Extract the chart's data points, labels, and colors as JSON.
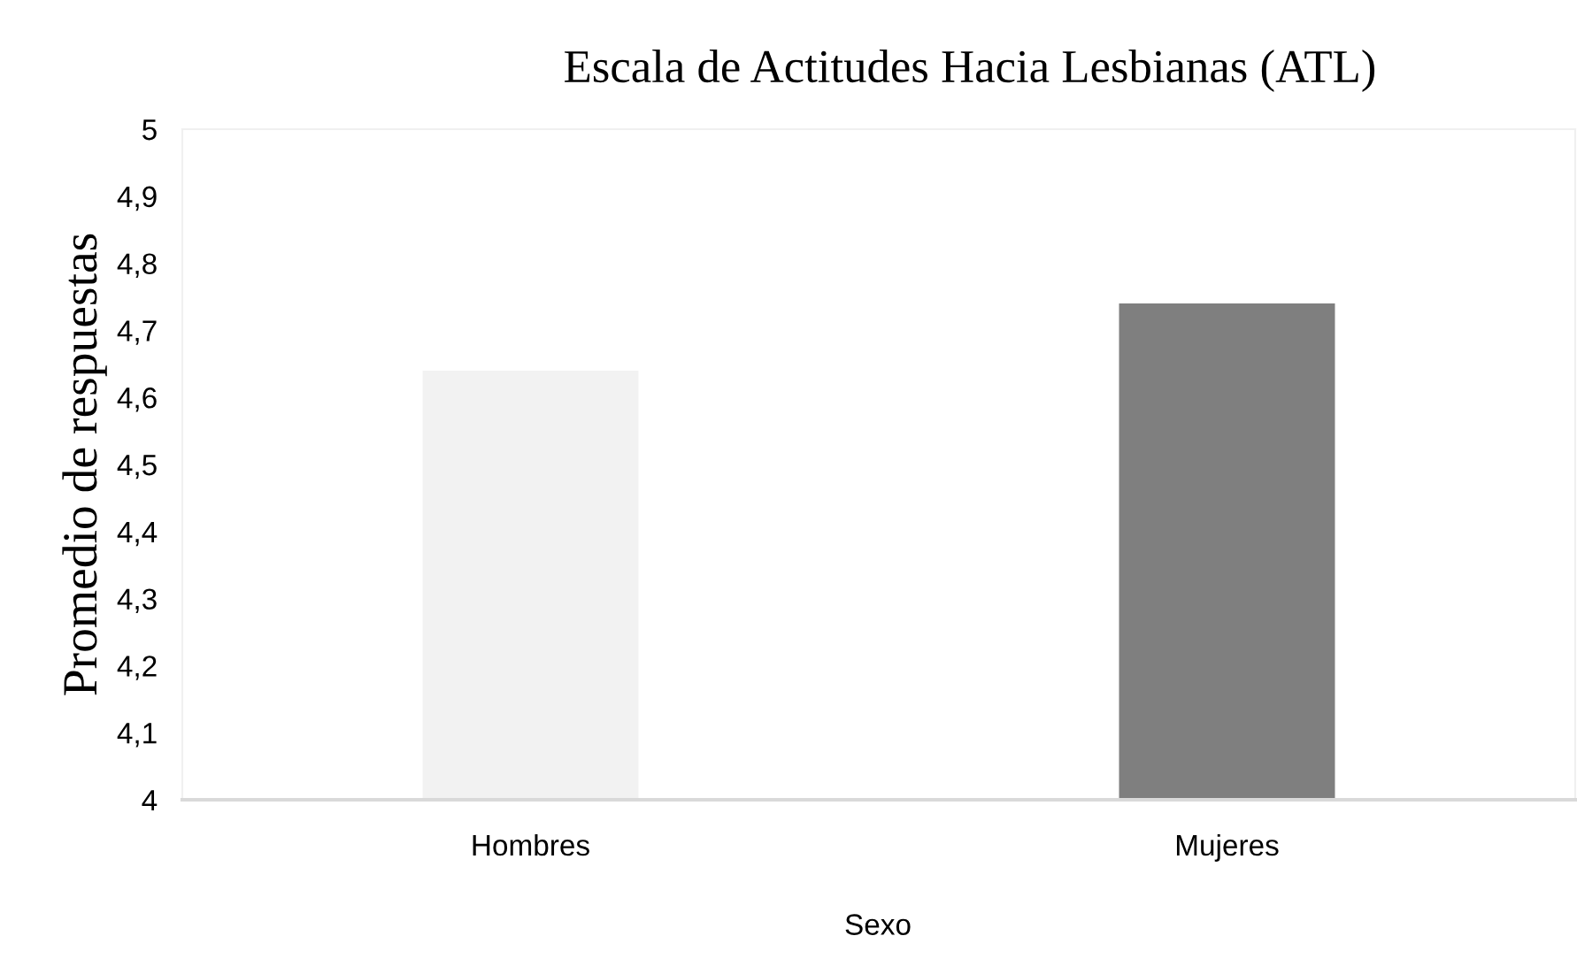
{
  "chart_data": {
    "type": "bar",
    "title": "Escala de Actitudes Hacia Lesbianas (ATL)",
    "xlabel": "Sexo",
    "ylabel": "Promedio de respuestas",
    "categories": [
      "Hombres",
      "Mujeres"
    ],
    "values": [
      4.64,
      4.74
    ],
    "colors": [
      "#f2f2f2",
      "#7f7f7f"
    ],
    "ylim": [
      4,
      5
    ],
    "yticks": [
      4,
      {
        "value": 4.1,
        "label": "4,1"
      },
      {
        "value": 4.2,
        "label": "4,2"
      },
      {
        "value": 4.3,
        "label": "4,3"
      },
      {
        "value": 4.4,
        "label": "4,4"
      },
      {
        "value": 4.5,
        "label": "4,5"
      },
      {
        "value": 4.6,
        "label": "4,6"
      },
      {
        "value": 4.7,
        "label": "4,7"
      },
      {
        "value": 4.8,
        "label": "4,8"
      },
      {
        "value": 4.9,
        "label": "4,9"
      },
      5
    ],
    "grid": false,
    "legend": false
  }
}
